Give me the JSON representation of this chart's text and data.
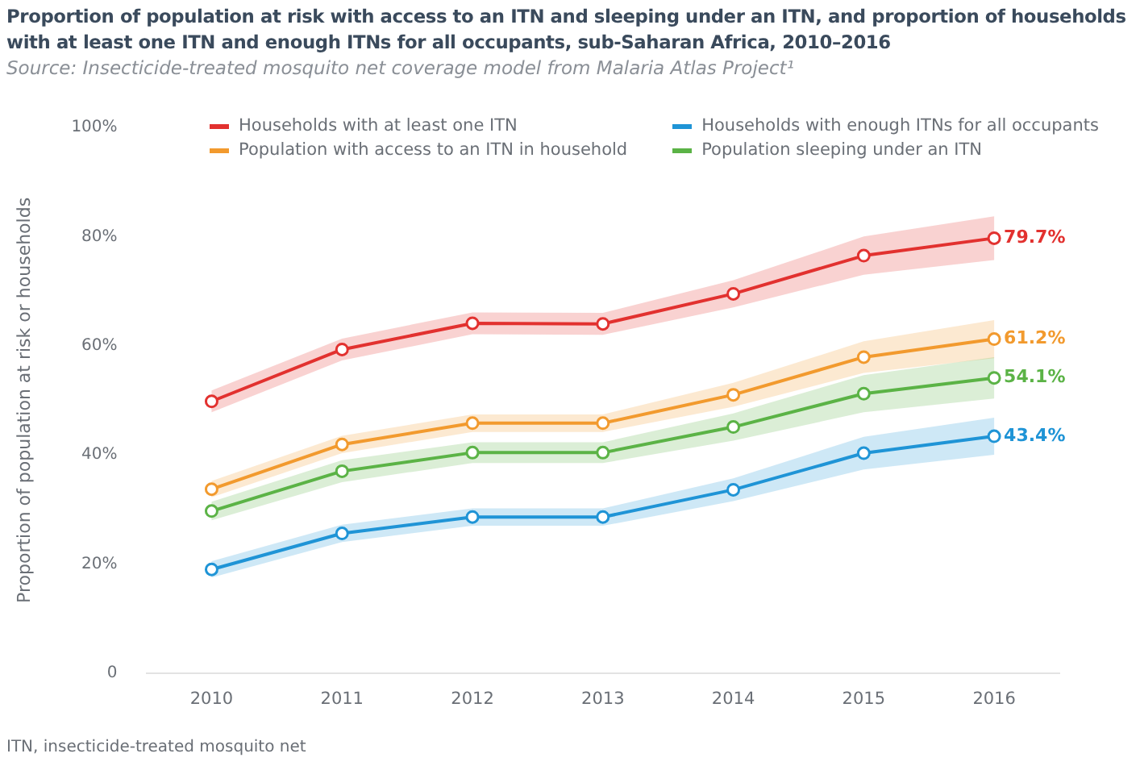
{
  "chart_data": {
    "type": "line",
    "title": "Proportion of population at risk with access to an ITN and sleeping under an ITN, and proportion of households with at least one ITN and enough ITNs for all occupants, sub-Saharan Africa, 2010–2016",
    "subtitle": "Source: Insecticide-treated mosquito net coverage model from Malaria Atlas Project¹",
    "ylabel": "Proportion of population at risk or households",
    "categories": [
      "2010",
      "2011",
      "2012",
      "2013",
      "2014",
      "2015",
      "2016"
    ],
    "series": [
      {
        "name": "Households with at least one ITN",
        "color": "#e2312f",
        "values": [
          49.8,
          59.3,
          64.1,
          64.0,
          69.5,
          76.5,
          79.7
        ],
        "lower": [
          47.8,
          57.3,
          62.1,
          62.0,
          67.0,
          73.0,
          75.7
        ],
        "upper": [
          51.8,
          61.3,
          66.1,
          66.0,
          72.0,
          80.0,
          83.7
        ],
        "value_labels": [
          null,
          null,
          null,
          null,
          null,
          null,
          "79.7%"
        ]
      },
      {
        "name": "Households with enough ITNs for all occupants",
        "color": "#1f94d6",
        "values": [
          19.0,
          25.6,
          28.6,
          28.6,
          33.6,
          40.3,
          43.4
        ],
        "lower": [
          17.5,
          24.0,
          27.0,
          27.0,
          31.5,
          37.3,
          40.0
        ],
        "upper": [
          20.5,
          27.2,
          30.2,
          30.2,
          35.7,
          43.3,
          46.8
        ],
        "value_labels": [
          null,
          null,
          null,
          null,
          null,
          null,
          "43.4%"
        ]
      },
      {
        "name": "Population with access to an ITN in household",
        "color": "#f29a2e",
        "values": [
          33.7,
          41.9,
          45.8,
          45.8,
          51.0,
          57.9,
          61.2
        ],
        "lower": [
          32.2,
          40.3,
          44.2,
          44.2,
          48.8,
          55.0,
          57.7
        ],
        "upper": [
          35.2,
          43.5,
          47.4,
          47.4,
          53.2,
          60.8,
          64.7
        ],
        "value_labels": [
          null,
          null,
          null,
          null,
          null,
          null,
          "61.2%"
        ]
      },
      {
        "name": "Population sleeping under an ITN",
        "color": "#5bb346",
        "values": [
          29.7,
          37.0,
          40.4,
          40.4,
          45.1,
          51.2,
          54.1
        ],
        "lower": [
          28.0,
          35.0,
          38.5,
          38.5,
          42.6,
          47.8,
          50.3
        ],
        "upper": [
          31.4,
          39.0,
          42.3,
          42.3,
          47.6,
          54.6,
          57.9
        ],
        "value_labels": [
          null,
          null,
          null,
          null,
          null,
          null,
          "54.1%"
        ]
      }
    ],
    "ylim": [
      0,
      100
    ],
    "yticks": [
      {
        "value": 0,
        "label": "0"
      },
      {
        "value": 20,
        "label": "20%"
      },
      {
        "value": 40,
        "label": "40%"
      },
      {
        "value": 60,
        "label": "60%"
      },
      {
        "value": 80,
        "label": "80%"
      },
      {
        "value": 100,
        "label": "100%"
      }
    ],
    "grid": false,
    "legend": "top",
    "marker": "circle",
    "line_style": "solid",
    "annotations": [
      "ITN, insecticide-treated mosquito net"
    ]
  }
}
